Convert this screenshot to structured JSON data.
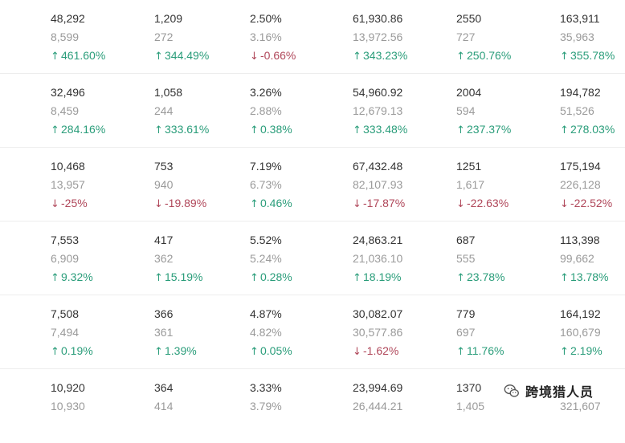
{
  "table": {
    "rows": [
      {
        "cells": [
          {
            "cur": "48,292",
            "prev": "8,599",
            "chg": "461.60%",
            "dir": "up"
          },
          {
            "cur": "1,209",
            "prev": "272",
            "chg": "344.49%",
            "dir": "up"
          },
          {
            "cur": "2.50%",
            "prev": "3.16%",
            "chg": "-0.66%",
            "dir": "down"
          },
          {
            "cur": "61,930.86",
            "prev": "13,972.56",
            "chg": "343.23%",
            "dir": "up"
          },
          {
            "cur": "2550",
            "prev": "727",
            "chg": "250.76%",
            "dir": "up"
          },
          {
            "cur": "163,911",
            "prev": "35,963",
            "chg": "355.78%",
            "dir": "up"
          }
        ]
      },
      {
        "cells": [
          {
            "cur": "32,496",
            "prev": "8,459",
            "chg": "284.16%",
            "dir": "up"
          },
          {
            "cur": "1,058",
            "prev": "244",
            "chg": "333.61%",
            "dir": "up"
          },
          {
            "cur": "3.26%",
            "prev": "2.88%",
            "chg": "0.38%",
            "dir": "up"
          },
          {
            "cur": "54,960.92",
            "prev": "12,679.13",
            "chg": "333.48%",
            "dir": "up"
          },
          {
            "cur": "2004",
            "prev": "594",
            "chg": "237.37%",
            "dir": "up"
          },
          {
            "cur": "194,782",
            "prev": "51,526",
            "chg": "278.03%",
            "dir": "up"
          }
        ]
      },
      {
        "cells": [
          {
            "cur": "10,468",
            "prev": "13,957",
            "chg": "-25%",
            "dir": "down"
          },
          {
            "cur": "753",
            "prev": "940",
            "chg": "-19.89%",
            "dir": "down"
          },
          {
            "cur": "7.19%",
            "prev": "6.73%",
            "chg": "0.46%",
            "dir": "up"
          },
          {
            "cur": "67,432.48",
            "prev": "82,107.93",
            "chg": "-17.87%",
            "dir": "down"
          },
          {
            "cur": "1251",
            "prev": "1,617",
            "chg": "-22.63%",
            "dir": "down"
          },
          {
            "cur": "175,194",
            "prev": "226,128",
            "chg": "-22.52%",
            "dir": "down"
          }
        ]
      },
      {
        "cells": [
          {
            "cur": "7,553",
            "prev": "6,909",
            "chg": "9.32%",
            "dir": "up"
          },
          {
            "cur": "417",
            "prev": "362",
            "chg": "15.19%",
            "dir": "up"
          },
          {
            "cur": "5.52%",
            "prev": "5.24%",
            "chg": "0.28%",
            "dir": "up"
          },
          {
            "cur": "24,863.21",
            "prev": "21,036.10",
            "chg": "18.19%",
            "dir": "up"
          },
          {
            "cur": "687",
            "prev": "555",
            "chg": "23.78%",
            "dir": "up"
          },
          {
            "cur": "113,398",
            "prev": "99,662",
            "chg": "13.78%",
            "dir": "up"
          }
        ]
      },
      {
        "cells": [
          {
            "cur": "7,508",
            "prev": "7,494",
            "chg": "0.19%",
            "dir": "up"
          },
          {
            "cur": "366",
            "prev": "361",
            "chg": "1.39%",
            "dir": "up"
          },
          {
            "cur": "4.87%",
            "prev": "4.82%",
            "chg": "0.05%",
            "dir": "up"
          },
          {
            "cur": "30,082.07",
            "prev": "30,577.86",
            "chg": "-1.62%",
            "dir": "down"
          },
          {
            "cur": "779",
            "prev": "697",
            "chg": "11.76%",
            "dir": "up"
          },
          {
            "cur": "164,192",
            "prev": "160,679",
            "chg": "2.19%",
            "dir": "up"
          }
        ]
      },
      {
        "cells": [
          {
            "cur": "10,920",
            "prev": "10,930",
            "chg": "",
            "dir": ""
          },
          {
            "cur": "364",
            "prev": "414",
            "chg": "",
            "dir": ""
          },
          {
            "cur": "3.33%",
            "prev": "3.79%",
            "chg": "",
            "dir": ""
          },
          {
            "cur": "23,994.69",
            "prev": "26,444.21",
            "chg": "",
            "dir": ""
          },
          {
            "cur": "1370",
            "prev": "1,405",
            "chg": "",
            "dir": ""
          },
          {
            "cur": "",
            "prev": "321,607",
            "chg": "",
            "dir": ""
          }
        ]
      }
    ]
  },
  "colors": {
    "up": "#2a9d7a",
    "down": "#b0475a",
    "primary_text": "#333333",
    "secondary_text": "#9a9a9a"
  },
  "icons": {
    "up": "arrow-up-icon",
    "down": "arrow-down-icon",
    "watermark": "wechat-icon"
  },
  "watermark": {
    "text": "跨境猎人员"
  }
}
